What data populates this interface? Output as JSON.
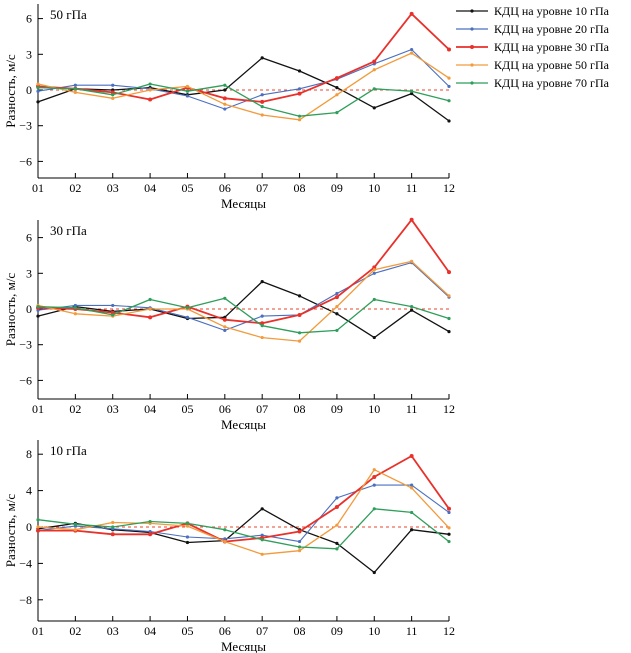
{
  "legend": {
    "placement": "top-right",
    "items": [
      {
        "label": "КДЦ на уровне 10 гПа",
        "color": "#111111"
      },
      {
        "label": "КДЦ на уровне 20 гПа",
        "color": "#4a6fc0"
      },
      {
        "label": "КДЦ на уровне 30 гПа",
        "color": "#e8312a"
      },
      {
        "label": "КДЦ на уровне 50 гПа",
        "color": "#f29a3c"
      },
      {
        "label": "КДЦ на уровне 70 гПа",
        "color": "#2f9e5b"
      }
    ]
  },
  "chart_data": [
    {
      "type": "line",
      "title": "50 гПа",
      "xlabel": "Месяцы",
      "ylabel": "Разность, м/с",
      "categories": [
        "01",
        "02",
        "03",
        "04",
        "05",
        "06",
        "07",
        "08",
        "09",
        "10",
        "11",
        "12"
      ],
      "yticks": [
        "6",
        "3",
        "0",
        "−3",
        "−6"
      ],
      "ylim": [
        -7.5,
        7
      ],
      "series": [
        {
          "name": "КДЦ на уровне 10 гПа",
          "values": [
            -1.0,
            0.1,
            0.0,
            0.2,
            -0.4,
            0.0,
            2.7,
            1.6,
            0.2,
            -1.5,
            -0.3,
            -2.6
          ]
        },
        {
          "name": "КДЦ на уровне 20 гПа",
          "values": [
            -0.1,
            0.4,
            0.4,
            0.1,
            -0.5,
            -1.6,
            -0.4,
            0.1,
            0.9,
            2.2,
            3.4,
            0.3
          ]
        },
        {
          "name": "КДЦ на уровне 30 гПа",
          "values": [
            0.3,
            0.1,
            -0.2,
            -0.8,
            0.2,
            -0.7,
            -1.0,
            -0.3,
            1.0,
            2.4,
            6.4,
            3.4
          ]
        },
        {
          "name": "КДЦ на уровне 50 гПа",
          "values": [
            0.5,
            -0.2,
            -0.7,
            0.0,
            0.3,
            -1.2,
            -2.1,
            -2.5,
            -0.4,
            1.7,
            3.1,
            1.0
          ]
        },
        {
          "name": "КДЦ на уровне 70 гПа",
          "values": [
            0.2,
            0.1,
            -0.4,
            0.5,
            -0.1,
            0.4,
            -1.4,
            -2.2,
            -1.9,
            0.1,
            -0.1,
            -0.9
          ]
        }
      ]
    },
    {
      "type": "line",
      "title": "30 гПа",
      "xlabel": "Месяцы",
      "ylabel": "Разность, м/с",
      "categories": [
        "01",
        "02",
        "03",
        "04",
        "05",
        "06",
        "07",
        "08",
        "09",
        "10",
        "11",
        "12"
      ],
      "yticks": [
        "6",
        "3",
        "0",
        "−3",
        "−6"
      ],
      "ylim": [
        -7.5,
        7.6
      ],
      "series": [
        {
          "name": "КДЦ на уровне 10 гПа",
          "values": [
            -0.6,
            0.2,
            -0.2,
            0.0,
            -0.8,
            -0.7,
            2.3,
            1.1,
            -0.4,
            -2.4,
            -0.1,
            -1.9
          ]
        },
        {
          "name": "КДЦ на уровне 20 гПа",
          "values": [
            -0.1,
            0.3,
            0.3,
            0.1,
            -0.7,
            -1.8,
            -0.6,
            -0.5,
            1.3,
            3.0,
            3.9,
            1.0
          ]
        },
        {
          "name": "КДЦ на уровне 30 гПа",
          "values": [
            0.1,
            0.0,
            -0.3,
            -0.7,
            0.2,
            -0.9,
            -1.2,
            -0.5,
            1.0,
            3.5,
            7.5,
            3.1
          ]
        },
        {
          "name": "КДЦ на уровне 50 гПа",
          "values": [
            0.3,
            -0.4,
            -0.6,
            0.0,
            0.0,
            -1.5,
            -2.4,
            -2.7,
            0.2,
            3.3,
            4.0,
            1.1
          ]
        },
        {
          "name": "КДЦ на уровне 70 гПа",
          "values": [
            0.2,
            0.1,
            -0.5,
            0.8,
            0.1,
            0.9,
            -1.4,
            -2.0,
            -1.8,
            0.8,
            0.2,
            -0.8
          ]
        }
      ]
    },
    {
      "type": "line",
      "title": "10 гПа",
      "xlabel": "Месяцы",
      "ylabel": "Разность, м/с",
      "categories": [
        "01",
        "02",
        "03",
        "04",
        "05",
        "06",
        "07",
        "08",
        "09",
        "10",
        "11",
        "12"
      ],
      "yticks": [
        "8",
        "4",
        "0",
        "−4",
        "−8"
      ],
      "ylim": [
        -10,
        10
      ],
      "series": [
        {
          "name": "КДЦ на уровне 10 гПа",
          "values": [
            -0.2,
            0.4,
            -0.3,
            -0.6,
            -1.7,
            -1.5,
            2.0,
            -0.3,
            -1.8,
            -5.0,
            -0.3,
            -0.8
          ]
        },
        {
          "name": "КДЦ на уровне 20 гПа",
          "values": [
            -0.4,
            0.1,
            -0.2,
            -0.5,
            -1.1,
            -1.3,
            -0.9,
            -1.6,
            3.2,
            4.6,
            4.6,
            1.6
          ]
        },
        {
          "name": "КДЦ на уровне 30 гПа",
          "values": [
            -0.4,
            -0.4,
            -0.8,
            -0.8,
            0.4,
            -1.6,
            -1.2,
            -0.5,
            2.2,
            5.5,
            7.8,
            2.0
          ]
        },
        {
          "name": "КДЦ на уровне 50 гПа",
          "values": [
            0.0,
            -0.3,
            0.5,
            0.4,
            0.1,
            -1.6,
            -3.0,
            -2.6,
            0.2,
            6.3,
            4.3,
            -0.1
          ]
        },
        {
          "name": "КДЦ на уровне 70 гПа",
          "values": [
            0.8,
            0.3,
            0.0,
            0.6,
            0.4,
            -0.3,
            -1.4,
            -2.2,
            -2.4,
            2.0,
            1.6,
            -1.6
          ]
        }
      ]
    }
  ]
}
